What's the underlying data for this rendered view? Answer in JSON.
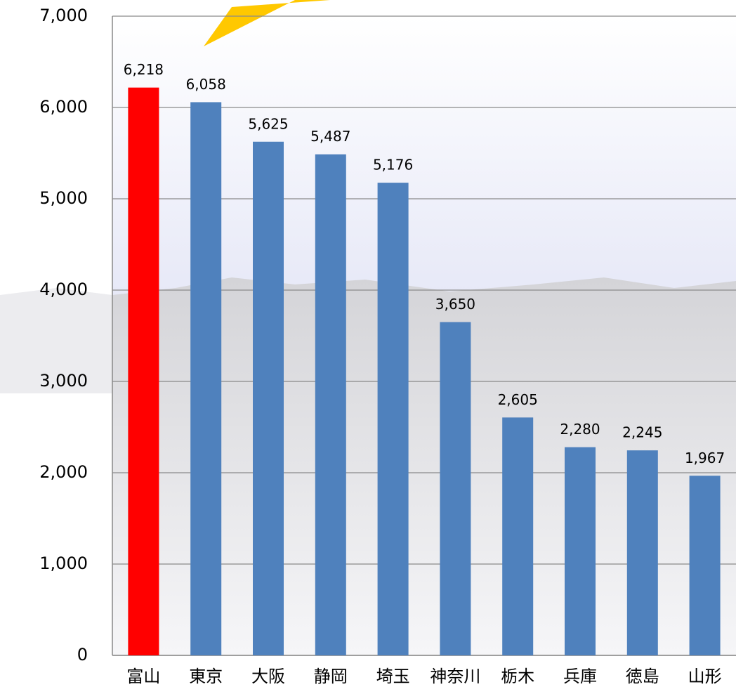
{
  "chart_data": {
    "type": "bar",
    "categories": [
      "富山",
      "東京",
      "大阪",
      "静岡",
      "埼玉",
      "神奈川",
      "栃木",
      "兵庫",
      "徳島",
      "山形"
    ],
    "values": [
      6218,
      6058,
      5625,
      5487,
      5176,
      3650,
      2605,
      2280,
      2245,
      1967
    ],
    "value_labels": [
      "6,218",
      "6,058",
      "5,625",
      "5,487",
      "5,176",
      "3,650",
      "2,605",
      "2,280",
      "2,245",
      "1,967"
    ],
    "colors": [
      "#ff0000",
      "#4f81bd",
      "#4f81bd",
      "#4f81bd",
      "#4f81bd",
      "#4f81bd",
      "#4f81bd",
      "#4f81bd",
      "#4f81bd",
      "#4f81bd"
    ],
    "ylim": [
      0,
      7000
    ],
    "yticks": [
      0,
      {
        "value": 1000,
        "label": "1,000"
      },
      {
        "value": 2000,
        "label": "2,000"
      },
      {
        "value": 3000,
        "label": "3,000"
      },
      {
        "value": 4000,
        "label": "4,000"
      },
      {
        "value": 5000,
        "label": "5,000"
      },
      {
        "value": 6000,
        "label": "6,000"
      },
      {
        "value": 7000,
        "label": "7,000"
      }
    ],
    "grid": true
  }
}
